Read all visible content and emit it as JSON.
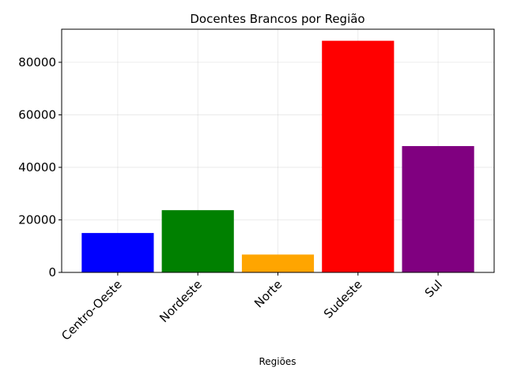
{
  "chart_data": {
    "type": "bar",
    "title": "Docentes Brancos por Região",
    "xlabel": "Regiões",
    "ylabel": "",
    "categories": [
      "Centro-Oeste",
      "Nordeste",
      "Norte",
      "Sudeste",
      "Sul"
    ],
    "values": [
      15000,
      23700,
      6800,
      88200,
      48100
    ],
    "colors": [
      "#0000ff",
      "#008000",
      "#ffa500",
      "#ff0000",
      "#800080"
    ],
    "ylim": [
      0,
      92600
    ],
    "yticks": [
      0,
      20000,
      40000,
      60000,
      80000
    ],
    "ytick_labels": [
      "0",
      "20000",
      "40000",
      "60000",
      "80000"
    ],
    "grid": true
  }
}
